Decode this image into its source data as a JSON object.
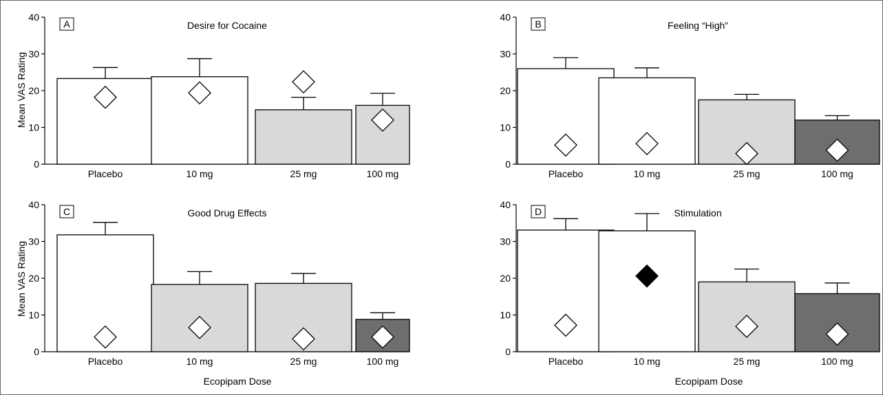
{
  "figure": {
    "x_axis_title": "Ecopipam Dose",
    "y_axis_title": "Mean VAS Rating"
  },
  "colors": {
    "white": "#ffffff",
    "light_gray": "#d9d9d9",
    "dark_gray": "#6e6e6e",
    "black": "#000000"
  },
  "chart_data": [
    {
      "type": "bar",
      "panel_letter": "A",
      "title": "Desire for Cocaine",
      "categories": [
        "Placebo",
        "10 mg",
        "25 mg",
        "100 mg"
      ],
      "ylim": [
        0,
        40
      ],
      "yticks": [
        0,
        10,
        20,
        30,
        40
      ],
      "ylabel": "Mean VAS Rating",
      "xlabel": "",
      "bar_values": [
        23.3,
        23.8,
        14.8,
        16.0
      ],
      "error_upper": [
        26.3,
        28.7,
        18.2,
        19.3
      ],
      "diamond_values": [
        18.2,
        19.4,
        22.4,
        12.0
      ],
      "bar_fills": [
        "white",
        "white",
        "light_gray",
        "light_gray"
      ],
      "diamond_fills": [
        "white",
        "white",
        "white",
        "white"
      ],
      "grid": false,
      "legend": "none"
    },
    {
      "type": "bar",
      "panel_letter": "B",
      "title": "Feeling “High”",
      "categories": [
        "Placebo",
        "10 mg",
        "25 mg",
        "100 mg"
      ],
      "ylim": [
        0,
        40
      ],
      "yticks": [
        0,
        10,
        20,
        30,
        40
      ],
      "ylabel": "",
      "xlabel": "",
      "bar_values": [
        26.0,
        23.5,
        17.5,
        12.0
      ],
      "error_upper": [
        29.0,
        26.2,
        19.0,
        13.2
      ],
      "diamond_values": [
        5.2,
        5.6,
        2.9,
        3.8
      ],
      "bar_fills": [
        "white",
        "white",
        "light_gray",
        "dark_gray"
      ],
      "diamond_fills": [
        "white",
        "white",
        "white",
        "white"
      ],
      "grid": false,
      "legend": "none"
    },
    {
      "type": "bar",
      "panel_letter": "C",
      "title": "Good Drug Effects",
      "categories": [
        "Placebo",
        "10 mg",
        "25 mg",
        "100 mg"
      ],
      "ylim": [
        0,
        40
      ],
      "yticks": [
        0,
        10,
        20,
        30,
        40
      ],
      "ylabel": "Mean VAS Rating",
      "xlabel": "Ecopipam Dose",
      "bar_values": [
        31.8,
        18.3,
        18.6,
        8.8
      ],
      "error_upper": [
        35.2,
        21.8,
        21.3,
        10.6
      ],
      "diamond_values": [
        4.0,
        6.6,
        3.5,
        4.0
      ],
      "bar_fills": [
        "white",
        "light_gray",
        "light_gray",
        "dark_gray"
      ],
      "diamond_fills": [
        "white",
        "white",
        "white",
        "white"
      ],
      "grid": false,
      "legend": "none"
    },
    {
      "type": "bar",
      "panel_letter": "D",
      "title": "Stimulation",
      "categories": [
        "Placebo",
        "10 mg",
        "25 mg",
        "100 mg"
      ],
      "ylim": [
        0,
        40
      ],
      "yticks": [
        0,
        10,
        20,
        30,
        40
      ],
      "ylabel": "",
      "xlabel": "Ecopipam Dose",
      "bar_values": [
        33.1,
        32.9,
        19.0,
        15.8
      ],
      "error_upper": [
        36.2,
        37.6,
        22.5,
        18.7
      ],
      "diamond_values": [
        7.2,
        20.6,
        6.9,
        4.8
      ],
      "bar_fills": [
        "white",
        "white",
        "light_gray",
        "dark_gray"
      ],
      "diamond_fills": [
        "white",
        "black",
        "white",
        "white"
      ],
      "grid": false,
      "legend": "none"
    }
  ]
}
